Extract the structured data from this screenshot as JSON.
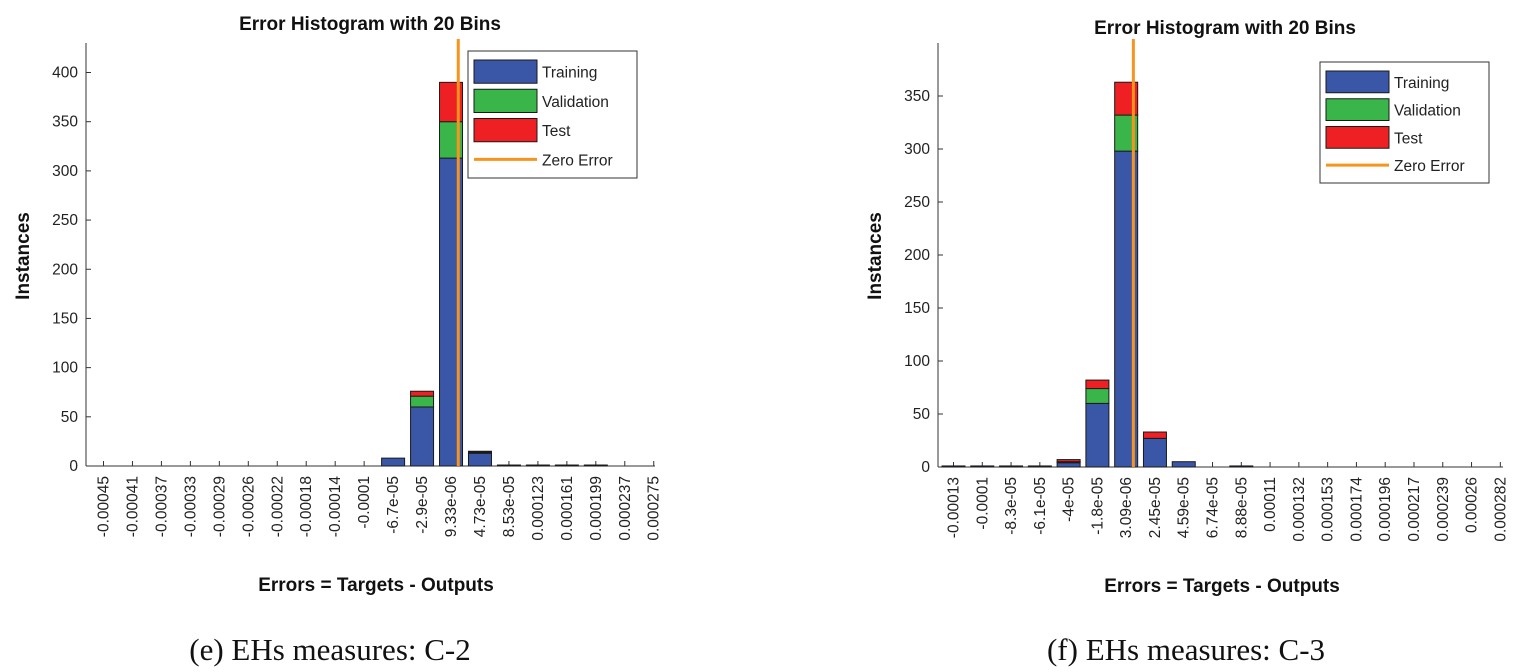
{
  "chart_data": [
    {
      "type": "bar",
      "stacked": true,
      "title": "Error Histogram with 20 Bins",
      "xlabel": "Errors = Targets - Outputs",
      "ylabel": "Instances",
      "ylim": [
        0,
        430
      ],
      "yticks": [
        0,
        50,
        100,
        150,
        200,
        250,
        300,
        350,
        400
      ],
      "categories": [
        "-0.00045",
        "-0.00041",
        "-0.00037",
        "-0.00033",
        "-0.00029",
        "-0.00026",
        "-0.00022",
        "-0.00018",
        "-0.00014",
        "-0.0001",
        "-6.7e-05",
        "-2.9e-05",
        "9.33e-06",
        "4.73e-05",
        "8.53e-05",
        "0.000123",
        "0.000161",
        "0.000199",
        "0.000237",
        "0.000275"
      ],
      "series": [
        {
          "name": "Training",
          "color": "#3a56a6",
          "values": [
            0,
            0,
            0,
            0,
            0,
            0,
            0,
            0,
            0,
            0,
            8,
            60,
            313,
            13,
            1,
            1,
            1,
            1,
            0,
            0
          ]
        },
        {
          "name": "Validation",
          "color": "#3ab54a",
          "values": [
            0,
            0,
            0,
            0,
            0,
            0,
            0,
            0,
            0,
            0,
            0,
            11,
            37,
            1,
            0,
            0,
            0,
            0,
            0,
            0
          ]
        },
        {
          "name": "Test",
          "color": "#ee2023",
          "values": [
            0,
            0,
            0,
            0,
            0,
            0,
            0,
            0,
            0,
            0,
            0,
            5,
            40,
            1,
            0,
            0,
            0,
            0,
            0,
            0
          ]
        }
      ],
      "zero_error": {
        "label": "Zero Error",
        "color": "#f7941d",
        "bin_position": 12.25
      },
      "legend": "top-right",
      "caption": "(e) EHs measures: C-2"
    },
    {
      "type": "bar",
      "stacked": true,
      "title": "Error Histogram with 20 Bins",
      "xlabel": "Errors = Targets - Outputs",
      "ylabel": "Instances",
      "ylim": [
        0,
        400
      ],
      "yticks": [
        0,
        50,
        100,
        150,
        200,
        250,
        300,
        350
      ],
      "categories": [
        "-0.00013",
        "-0.0001",
        "-8.3e-05",
        "-6.1e-05",
        "-4e-05",
        "-1.8e-05",
        "3.09e-06",
        "2.45e-05",
        "4.59e-05",
        "6.74e-05",
        "8.88e-05",
        "0.00011",
        "0.000132",
        "0.000153",
        "0.000174",
        "0.000196",
        "0.000217",
        "0.000239",
        "0.00026",
        "0.000282"
      ],
      "series": [
        {
          "name": "Training",
          "color": "#3a56a6",
          "values": [
            1,
            1,
            1,
            1,
            4,
            60,
            298,
            27,
            5,
            0,
            1,
            0,
            0,
            0,
            0,
            0,
            0,
            0,
            0,
            0
          ]
        },
        {
          "name": "Validation",
          "color": "#3ab54a",
          "values": [
            0,
            0,
            0,
            0,
            1,
            14,
            34,
            0,
            0,
            0,
            0,
            0,
            0,
            0,
            0,
            0,
            0,
            0,
            0,
            0
          ]
        },
        {
          "name": "Test",
          "color": "#ee2023",
          "values": [
            0,
            0,
            0,
            0,
            2,
            8,
            31,
            6,
            0,
            0,
            0,
            0,
            0,
            0,
            0,
            0,
            0,
            0,
            0,
            0
          ]
        }
      ],
      "zero_error": {
        "label": "Zero Error",
        "color": "#f7941d",
        "bin_position": 6.25
      },
      "legend": "top-right",
      "caption": "(f) EHs measures: C-3"
    }
  ]
}
